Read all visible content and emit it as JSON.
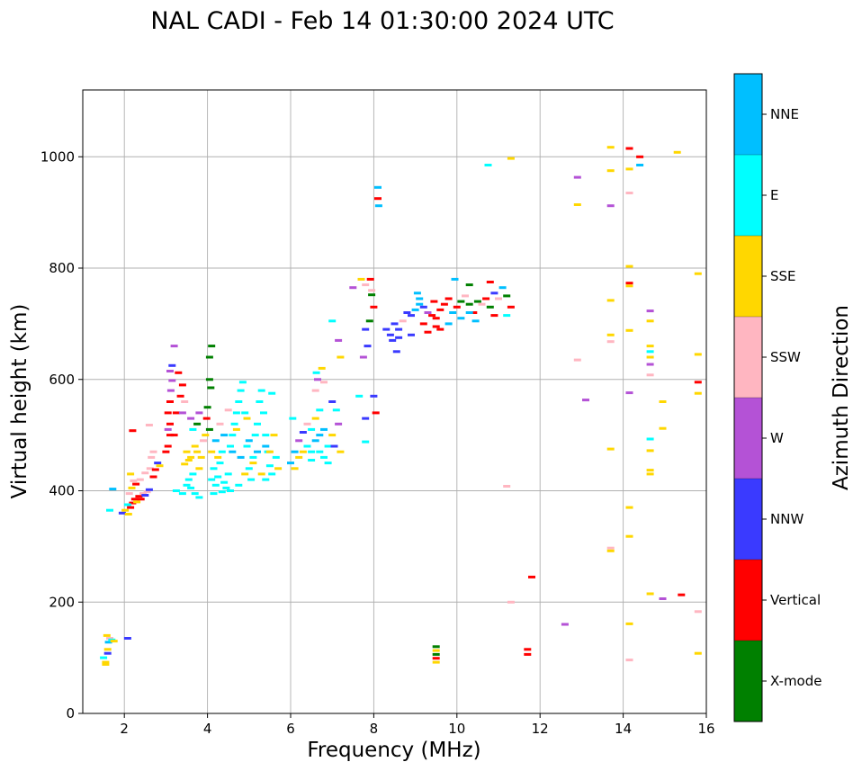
{
  "chart_data": {
    "type": "scatter",
    "title": "NAL CADI - Feb 14 01:30:00 2024 UTC",
    "xlabel": "Frequency (MHz)",
    "ylabel": "Virtual height (km)",
    "xlim": [
      1,
      16
    ],
    "ylim": [
      0,
      1120
    ],
    "xticks": [
      2,
      4,
      6,
      8,
      10,
      12,
      14,
      16
    ],
    "yticks": [
      0,
      200,
      400,
      600,
      800,
      1000
    ],
    "grid": true,
    "colorbar": {
      "label": "Azimuth Direction",
      "categories": [
        {
          "name": "X-mode",
          "color": "#008000"
        },
        {
          "name": "Vertical",
          "color": "#ff0000"
        },
        {
          "name": "NNW",
          "color": "#3a3aff"
        },
        {
          "name": "W",
          "color": "#b452d6"
        },
        {
          "name": "SSW",
          "color": "#ffb6c1"
        },
        {
          "name": "SSE",
          "color": "#ffd700"
        },
        {
          "name": "E",
          "color": "#00ffff"
        },
        {
          "name": "NNE",
          "color": "#00bfff"
        }
      ]
    },
    "points": [
      [
        1.5,
        100,
        "E"
      ],
      [
        1.55,
        92,
        "SSE"
      ],
      [
        1.6,
        115,
        "SSE"
      ],
      [
        1.62,
        128,
        "NNE"
      ],
      [
        1.65,
        135,
        "SSW"
      ],
      [
        1.58,
        140,
        "SSE"
      ],
      [
        1.7,
        132,
        "E"
      ],
      [
        1.75,
        130,
        "SSE"
      ],
      [
        1.6,
        108,
        "NNW"
      ],
      [
        1.55,
        88,
        "SSE"
      ],
      [
        2.08,
        135,
        "NNW"
      ],
      [
        1.72,
        403,
        "NNE"
      ],
      [
        1.65,
        365,
        "E"
      ],
      [
        1.95,
        360,
        "NNW"
      ],
      [
        2.02,
        365,
        "SSE"
      ],
      [
        2.1,
        358,
        "SSE"
      ],
      [
        2.15,
        370,
        "Vertical"
      ],
      [
        2.2,
        378,
        "Vertical"
      ],
      [
        2.25,
        385,
        "Vertical"
      ],
      [
        2.3,
        380,
        "SSE"
      ],
      [
        2.35,
        390,
        "Vertical"
      ],
      [
        2.4,
        385,
        "Vertical"
      ],
      [
        2.45,
        395,
        "SSW"
      ],
      [
        2.5,
        392,
        "NNW"
      ],
      [
        2.55,
        398,
        "SSW"
      ],
      [
        2.6,
        402,
        "NNW"
      ],
      [
        2.12,
        395,
        "SSW"
      ],
      [
        2.18,
        405,
        "SSE"
      ],
      [
        2.22,
        418,
        "SSW"
      ],
      [
        2.28,
        412,
        "Vertical"
      ],
      [
        2.38,
        420,
        "SSW"
      ],
      [
        2.5,
        432,
        "SSW"
      ],
      [
        2.62,
        440,
        "SSW"
      ],
      [
        2.7,
        425,
        "Vertical"
      ],
      [
        2.75,
        438,
        "Vertical"
      ],
      [
        2.8,
        450,
        "NNW"
      ],
      [
        2.85,
        445,
        "SSE"
      ],
      [
        2.65,
        460,
        "SSW"
      ],
      [
        2.7,
        470,
        "SSW"
      ],
      [
        2.2,
        508,
        "Vertical"
      ],
      [
        2.6,
        518,
        "SSW"
      ],
      [
        2.15,
        430,
        "SSE"
      ],
      [
        2.08,
        375,
        "E"
      ],
      [
        3.0,
        470,
        "Vertical"
      ],
      [
        3.05,
        480,
        "Vertical"
      ],
      [
        3.1,
        500,
        "Vertical"
      ],
      [
        3.1,
        520,
        "Vertical"
      ],
      [
        3.05,
        540,
        "Vertical"
      ],
      [
        3.1,
        560,
        "Vertical"
      ],
      [
        3.12,
        580,
        "W"
      ],
      [
        3.15,
        598,
        "W"
      ],
      [
        3.1,
        615,
        "W"
      ],
      [
        3.2,
        660,
        "W"
      ],
      [
        3.15,
        625,
        "NNW"
      ],
      [
        3.05,
        510,
        "W"
      ],
      [
        3.2,
        500,
        "Vertical"
      ],
      [
        3.25,
        540,
        "Vertical"
      ],
      [
        3.35,
        570,
        "Vertical"
      ],
      [
        3.4,
        590,
        "Vertical"
      ],
      [
        3.45,
        560,
        "SSW"
      ],
      [
        3.4,
        540,
        "W"
      ],
      [
        3.3,
        612,
        "Vertical"
      ],
      [
        3.5,
        470,
        "SSE"
      ],
      [
        3.55,
        455,
        "SSE"
      ],
      [
        3.45,
        448,
        "SSE"
      ],
      [
        3.6,
        460,
        "SSE"
      ],
      [
        3.7,
        480,
        "SSE"
      ],
      [
        3.75,
        470,
        "SSE"
      ],
      [
        3.8,
        440,
        "SSE"
      ],
      [
        3.85,
        460,
        "SSE"
      ],
      [
        3.9,
        490,
        "SSW"
      ],
      [
        3.95,
        500,
        "SSE"
      ],
      [
        3.65,
        510,
        "E"
      ],
      [
        3.6,
        530,
        "W"
      ],
      [
        3.8,
        540,
        "W"
      ],
      [
        3.75,
        520,
        "X-mode"
      ],
      [
        3.25,
        400,
        "E"
      ],
      [
        3.4,
        395,
        "E"
      ],
      [
        3.5,
        410,
        "E"
      ],
      [
        3.6,
        405,
        "E"
      ],
      [
        3.7,
        395,
        "E"
      ],
      [
        3.8,
        388,
        "E"
      ],
      [
        3.55,
        420,
        "E"
      ],
      [
        3.65,
        430,
        "E"
      ],
      [
        4.05,
        640,
        "X-mode"
      ],
      [
        4.05,
        600,
        "X-mode"
      ],
      [
        4.1,
        660,
        "X-mode"
      ],
      [
        4.08,
        585,
        "X-mode"
      ],
      [
        3.98,
        530,
        "Vertical"
      ],
      [
        4.0,
        550,
        "X-mode"
      ],
      [
        4.05,
        510,
        "X-mode"
      ],
      [
        4.1,
        420,
        "E"
      ],
      [
        4.15,
        440,
        "E"
      ],
      [
        4.2,
        410,
        "E"
      ],
      [
        4.25,
        425,
        "E"
      ],
      [
        4.3,
        450,
        "E"
      ],
      [
        4.35,
        470,
        "E"
      ],
      [
        4.4,
        415,
        "E"
      ],
      [
        4.45,
        405,
        "E"
      ],
      [
        4.5,
        430,
        "E"
      ],
      [
        4.55,
        480,
        "E"
      ],
      [
        4.6,
        500,
        "E"
      ],
      [
        4.65,
        520,
        "E"
      ],
      [
        4.7,
        540,
        "E"
      ],
      [
        4.75,
        560,
        "E"
      ],
      [
        4.8,
        580,
        "E"
      ],
      [
        4.85,
        595,
        "E"
      ],
      [
        4.9,
        540,
        "E"
      ],
      [
        4.95,
        480,
        "E"
      ],
      [
        5.0,
        440,
        "E"
      ],
      [
        5.05,
        420,
        "E"
      ],
      [
        5.1,
        460,
        "E"
      ],
      [
        5.15,
        500,
        "E"
      ],
      [
        5.2,
        520,
        "E"
      ],
      [
        5.25,
        560,
        "E"
      ],
      [
        5.3,
        580,
        "E"
      ],
      [
        5.35,
        540,
        "E"
      ],
      [
        5.4,
        500,
        "E"
      ],
      [
        5.45,
        470,
        "E"
      ],
      [
        5.5,
        445,
        "E"
      ],
      [
        5.55,
        430,
        "E"
      ],
      [
        5.4,
        420,
        "E"
      ],
      [
        4.2,
        490,
        "NNE"
      ],
      [
        4.4,
        500,
        "NNE"
      ],
      [
        4.6,
        470,
        "NNE"
      ],
      [
        4.8,
        460,
        "NNE"
      ],
      [
        5.0,
        490,
        "NNE"
      ],
      [
        5.2,
        470,
        "NNE"
      ],
      [
        5.4,
        480,
        "NNE"
      ],
      [
        4.3,
        520,
        "SSW"
      ],
      [
        4.7,
        510,
        "SSE"
      ],
      [
        4.9,
        430,
        "SSE"
      ],
      [
        5.1,
        450,
        "SSE"
      ],
      [
        5.3,
        430,
        "SSE"
      ],
      [
        5.5,
        470,
        "SSE"
      ],
      [
        5.6,
        500,
        "SSE"
      ],
      [
        4.5,
        545,
        "SSW"
      ],
      [
        4.95,
        530,
        "SSE"
      ],
      [
        4.1,
        470,
        "SSE"
      ],
      [
        4.25,
        460,
        "SSE"
      ],
      [
        4.15,
        395,
        "E"
      ],
      [
        4.35,
        398,
        "E"
      ],
      [
        4.55,
        400,
        "E"
      ],
      [
        4.75,
        410,
        "E"
      ],
      [
        5.55,
        575,
        "E"
      ],
      [
        5.65,
        460,
        "E"
      ],
      [
        5.7,
        440,
        "SSE"
      ],
      [
        6.0,
        450,
        "NNE"
      ],
      [
        6.1,
        470,
        "NNE"
      ],
      [
        6.05,
        530,
        "E"
      ],
      [
        6.1,
        440,
        "SSE"
      ],
      [
        6.2,
        460,
        "SSE"
      ],
      [
        6.3,
        470,
        "SSE"
      ],
      [
        6.4,
        480,
        "E"
      ],
      [
        6.5,
        470,
        "E"
      ],
      [
        6.6,
        490,
        "NNE"
      ],
      [
        6.7,
        500,
        "NNE"
      ],
      [
        6.8,
        510,
        "NNE"
      ],
      [
        6.9,
        480,
        "E"
      ],
      [
        7.0,
        500,
        "SSE"
      ],
      [
        7.05,
        480,
        "NNW"
      ],
      [
        6.6,
        530,
        "SSE"
      ],
      [
        6.7,
        545,
        "E"
      ],
      [
        6.5,
        510,
        "E"
      ],
      [
        6.4,
        520,
        "SSW"
      ],
      [
        6.3,
        505,
        "NNW"
      ],
      [
        6.2,
        490,
        "W"
      ],
      [
        6.6,
        580,
        "SSW"
      ],
      [
        6.65,
        600,
        "W"
      ],
      [
        6.62,
        612,
        "E"
      ],
      [
        6.75,
        620,
        "SSE"
      ],
      [
        6.8,
        595,
        "SSW"
      ],
      [
        7.0,
        560,
        "NNW"
      ],
      [
        7.1,
        545,
        "E"
      ],
      [
        7.15,
        520,
        "W"
      ],
      [
        7.2,
        470,
        "SSE"
      ],
      [
        6.8,
        460,
        "E"
      ],
      [
        6.9,
        450,
        "E"
      ],
      [
        7.0,
        705,
        "E"
      ],
      [
        7.15,
        670,
        "W"
      ],
      [
        7.2,
        640,
        "SSE"
      ],
      [
        6.5,
        455,
        "E"
      ],
      [
        6.7,
        470,
        "E"
      ],
      [
        7.5,
        765,
        "W"
      ],
      [
        7.7,
        780,
        "SSE"
      ],
      [
        7.8,
        770,
        "SSW"
      ],
      [
        7.95,
        752,
        "X-mode"
      ],
      [
        8.0,
        730,
        "Vertical"
      ],
      [
        7.9,
        705,
        "X-mode"
      ],
      [
        7.8,
        690,
        "NNW"
      ],
      [
        7.85,
        660,
        "NNW"
      ],
      [
        7.75,
        640,
        "W"
      ],
      [
        7.95,
        760,
        "SSW"
      ],
      [
        7.65,
        570,
        "E"
      ],
      [
        7.8,
        530,
        "NNW"
      ],
      [
        7.8,
        488,
        "E"
      ],
      [
        8.0,
        570,
        "NNW"
      ],
      [
        8.05,
        540,
        "Vertical"
      ],
      [
        8.1,
        945,
        "NNE"
      ],
      [
        8.1,
        925,
        "Vertical"
      ],
      [
        8.12,
        912,
        "NNE"
      ],
      [
        7.92,
        780,
        "Vertical"
      ],
      [
        8.3,
        690,
        "NNW"
      ],
      [
        8.4,
        680,
        "NNW"
      ],
      [
        8.5,
        700,
        "NNW"
      ],
      [
        8.6,
        690,
        "NNW"
      ],
      [
        8.7,
        705,
        "SSW"
      ],
      [
        8.8,
        720,
        "NNW"
      ],
      [
        8.9,
        715,
        "NNW"
      ],
      [
        9.0,
        725,
        "NNE"
      ],
      [
        9.1,
        735,
        "NNE"
      ],
      [
        9.2,
        730,
        "NNW"
      ],
      [
        9.3,
        720,
        "W"
      ],
      [
        9.4,
        715,
        "Vertical"
      ],
      [
        9.5,
        710,
        "Vertical"
      ],
      [
        9.6,
        725,
        "Vertical"
      ],
      [
        9.7,
        735,
        "Vertical"
      ],
      [
        9.8,
        745,
        "Vertical"
      ],
      [
        9.9,
        720,
        "NNE"
      ],
      [
        10.0,
        730,
        "Vertical"
      ],
      [
        10.1,
        740,
        "X-mode"
      ],
      [
        10.2,
        750,
        "SSW"
      ],
      [
        10.3,
        735,
        "X-mode"
      ],
      [
        10.4,
        720,
        "Vertical"
      ],
      [
        10.5,
        740,
        "X-mode"
      ],
      [
        10.6,
        735,
        "SSW"
      ],
      [
        10.7,
        745,
        "Vertical"
      ],
      [
        10.8,
        730,
        "X-mode"
      ],
      [
        10.9,
        755,
        "NNW"
      ],
      [
        11.0,
        745,
        "SSW"
      ],
      [
        11.1,
        765,
        "NNE"
      ],
      [
        11.2,
        750,
        "X-mode"
      ],
      [
        11.3,
        730,
        "Vertical"
      ],
      [
        8.6,
        675,
        "NNW"
      ],
      [
        8.9,
        680,
        "NNW"
      ],
      [
        9.2,
        700,
        "Vertical"
      ],
      [
        9.5,
        695,
        "Vertical"
      ],
      [
        9.3,
        685,
        "Vertical"
      ],
      [
        9.6,
        690,
        "Vertical"
      ],
      [
        9.8,
        700,
        "NNE"
      ],
      [
        10.1,
        710,
        "NNE"
      ],
      [
        10.3,
        720,
        "NNE"
      ],
      [
        10.45,
        705,
        "NNE"
      ],
      [
        9.05,
        755,
        "NNE"
      ],
      [
        9.1,
        745,
        "NNE"
      ],
      [
        9.45,
        740,
        "Vertical"
      ],
      [
        9.95,
        780,
        "NNE"
      ],
      [
        10.3,
        770,
        "X-mode"
      ],
      [
        10.8,
        775,
        "Vertical"
      ],
      [
        11.2,
        715,
        "E"
      ],
      [
        10.9,
        715,
        "Vertical"
      ],
      [
        8.55,
        650,
        "NNW"
      ],
      [
        8.45,
        670,
        "NNW"
      ],
      [
        10.75,
        985,
        "E"
      ],
      [
        11.3,
        997,
        "SSE"
      ],
      [
        9.5,
        120,
        "X-mode"
      ],
      [
        9.5,
        113,
        "SSE"
      ],
      [
        9.5,
        106,
        "X-mode"
      ],
      [
        9.5,
        99,
        "Vertical"
      ],
      [
        9.5,
        92,
        "SSE"
      ],
      [
        11.8,
        245,
        "Vertical"
      ],
      [
        11.7,
        115,
        "Vertical"
      ],
      [
        11.7,
        106,
        "Vertical"
      ],
      [
        11.3,
        200,
        "SSW"
      ],
      [
        11.2,
        408,
        "SSW"
      ],
      [
        12.6,
        160,
        "W"
      ],
      [
        12.9,
        635,
        "SSW"
      ],
      [
        12.9,
        963,
        "W"
      ],
      [
        12.9,
        914,
        "SSE"
      ],
      [
        13.1,
        563,
        "W"
      ],
      [
        13.7,
        1017,
        "SSE"
      ],
      [
        13.7,
        975,
        "SSE"
      ],
      [
        13.7,
        912,
        "W"
      ],
      [
        13.7,
        742,
        "SSE"
      ],
      [
        13.7,
        680,
        "SSE"
      ],
      [
        13.7,
        668,
        "SSW"
      ],
      [
        13.7,
        475,
        "SSE"
      ],
      [
        13.7,
        297,
        "SSW"
      ],
      [
        13.7,
        292,
        "SSE"
      ],
      [
        14.15,
        1015,
        "Vertical"
      ],
      [
        14.15,
        978,
        "SSE"
      ],
      [
        14.15,
        935,
        "SSW"
      ],
      [
        14.15,
        803,
        "SSE"
      ],
      [
        14.15,
        773,
        "Vertical"
      ],
      [
        14.15,
        768,
        "SSE"
      ],
      [
        14.15,
        688,
        "SSE"
      ],
      [
        14.15,
        576,
        "W"
      ],
      [
        14.15,
        370,
        "SSE"
      ],
      [
        14.15,
        318,
        "SSE"
      ],
      [
        14.15,
        161,
        "SSE"
      ],
      [
        14.15,
        96,
        "SSW"
      ],
      [
        14.4,
        985,
        "NNE"
      ],
      [
        14.4,
        1000,
        "Vertical"
      ],
      [
        14.65,
        723,
        "W"
      ],
      [
        14.65,
        705,
        "SSE"
      ],
      [
        14.65,
        660,
        "SSE"
      ],
      [
        14.65,
        650,
        "E"
      ],
      [
        14.65,
        640,
        "SSE"
      ],
      [
        14.65,
        627,
        "W"
      ],
      [
        14.65,
        608,
        "SSW"
      ],
      [
        14.65,
        493,
        "E"
      ],
      [
        14.65,
        472,
        "SSE"
      ],
      [
        14.65,
        437,
        "SSE"
      ],
      [
        14.65,
        430,
        "SSE"
      ],
      [
        14.65,
        215,
        "SSE"
      ],
      [
        14.95,
        560,
        "SSE"
      ],
      [
        14.95,
        512,
        "SSE"
      ],
      [
        14.95,
        206,
        "W"
      ],
      [
        15.3,
        1008,
        "SSE"
      ],
      [
        15.4,
        213,
        "Vertical"
      ],
      [
        15.8,
        790,
        "SSE"
      ],
      [
        15.8,
        645,
        "SSE"
      ],
      [
        15.8,
        595,
        "Vertical"
      ],
      [
        15.8,
        575,
        "SSE"
      ],
      [
        15.8,
        183,
        "SSW"
      ],
      [
        15.8,
        108,
        "SSE"
      ]
    ]
  }
}
